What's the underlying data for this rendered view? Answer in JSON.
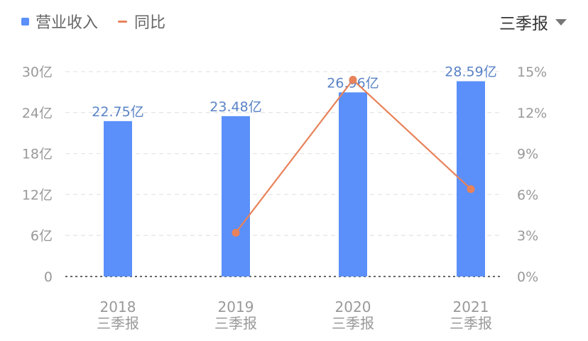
{
  "legend": {
    "bar_label": "营业收入",
    "line_label": "同比"
  },
  "period_selector": {
    "label": "三季报"
  },
  "colors": {
    "bar": "#5b8ff9",
    "line": "#e8825a",
    "axis_text": "#999999",
    "grid": "#e6e6e6",
    "bar_label": "#5a83c6"
  },
  "icons": {
    "period_dropdown": "chevron-down-icon"
  },
  "chart_data": {
    "type": "bar",
    "categories": [
      "2018",
      "2019",
      "2020",
      "2021"
    ],
    "category_sublabel": "三季报",
    "series": [
      {
        "name": "营业收入",
        "type": "bar",
        "axis": "left",
        "values": [
          22.75,
          23.48,
          26.96,
          28.59
        ],
        "data_labels": [
          "22.75亿",
          "23.48亿",
          "26.96亿",
          "28.59亿"
        ]
      },
      {
        "name": "同比",
        "type": "line",
        "axis": "right",
        "values": [
          null,
          3.2,
          14.4,
          6.4
        ]
      }
    ],
    "y_left": {
      "range": [
        0,
        30
      ],
      "ticks": [
        0,
        6,
        12,
        18,
        24,
        30
      ],
      "tick_labels": [
        "0",
        "6亿",
        "12亿",
        "18亿",
        "24亿",
        "30亿"
      ]
    },
    "y_right": {
      "range": [
        0,
        15
      ],
      "ticks": [
        0,
        3,
        6,
        9,
        12,
        15
      ],
      "tick_labels": [
        "0%",
        "3%",
        "6%",
        "9%",
        "12%",
        "15%"
      ]
    },
    "grid": true,
    "legend_position": "top-left"
  }
}
